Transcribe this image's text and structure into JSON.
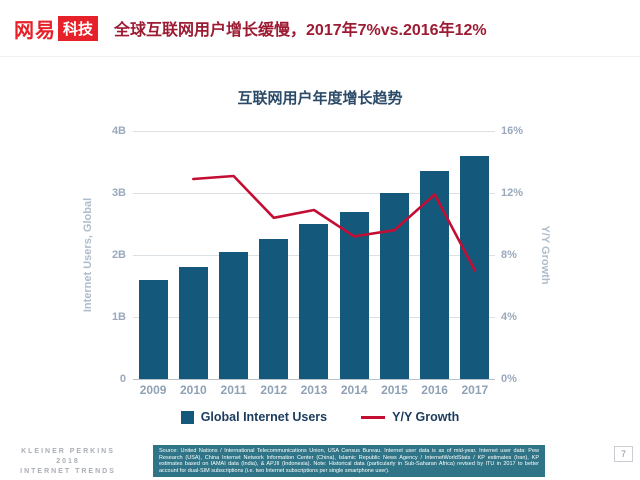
{
  "header": {
    "logo_netease": "网易",
    "logo_tech": "科技",
    "title": "全球互联网用户增长缓慢，2017年7%vs.2016年12%"
  },
  "chart": {
    "title": "互联网用户年度增长趋势",
    "left_axis_label": "Internet Users, Global",
    "right_axis_label": "Y/Y Growth"
  },
  "chart_data": {
    "type": "bar+line",
    "title": "互联网用户年度增长趋势",
    "categories": [
      "2009",
      "2010",
      "2011",
      "2012",
      "2013",
      "2014",
      "2015",
      "2016",
      "2017"
    ],
    "series": [
      {
        "name": "Global Internet Users",
        "type": "bar",
        "axis": "left",
        "unit": "billions",
        "values": [
          1.6,
          1.8,
          2.05,
          2.25,
          2.5,
          2.7,
          3.0,
          3.35,
          3.6
        ]
      },
      {
        "name": "Y/Y Growth",
        "type": "line",
        "axis": "right",
        "unit": "%",
        "x_start_index": 1,
        "values": [
          12.9,
          13.1,
          10.4,
          10.9,
          9.2,
          9.6,
          11.9,
          7.0
        ]
      }
    ],
    "left_axis_label": "Internet Users, Global",
    "right_axis_label": "Y/Y Growth",
    "left_ticks": [
      "0",
      "1B",
      "2B",
      "3B",
      "4B"
    ],
    "left_ylim": [
      0,
      4
    ],
    "right_ticks": [
      "0%",
      "4%",
      "8%",
      "12%",
      "16%"
    ],
    "right_ylim": [
      0,
      16
    ],
    "grid": true,
    "legend_position": "bottom",
    "colors": {
      "bar": "#14597c",
      "line": "#c40d33"
    }
  },
  "legend": {
    "bar_label": "Global Internet Users",
    "line_label": "Y/Y Growth"
  },
  "colors": {
    "brand_red": "#e62129",
    "headline_crimson": "#9c1b33",
    "chart_title_navy": "#2b4a68",
    "source_box_teal": "#2f7587"
  },
  "footer": {
    "brand_line1": "KLEINER PERKINS",
    "brand_line2": "2018",
    "brand_line3": "INTERNET TRENDS",
    "source_text": "Source: United Nations / International Telecommunications Union, USA Census Bureau. Internet user data is as of mid-year. Internet user data: Pew Research (USA), China Internet Network Information Center (China), Islamic Republic News Agency / InternetWorldStats / KP estimates (Iran), KP estimates based on IAMAI data (India), & APJII (Indonesia). Note: Historical data (particularly in Sub-Saharan Africa) revised by ITU in 2017 to better account for dual-SIM subscriptions (i.e. two Internet subscriptions per single smartphone user).",
    "page_number": "7"
  }
}
